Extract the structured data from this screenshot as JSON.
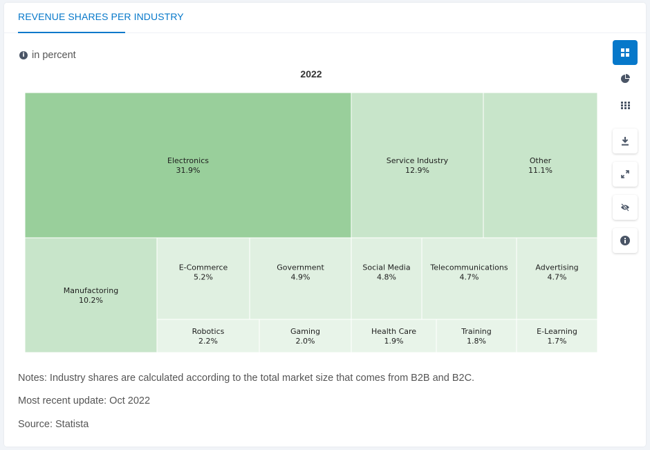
{
  "tab": {
    "label": "REVENUE SHARES PER INDUSTRY"
  },
  "unit": {
    "label": "in percent"
  },
  "chart_data": {
    "type": "treemap",
    "title": "2022",
    "unit": "percent",
    "items": [
      {
        "name": "Electronics",
        "value": 31.9,
        "label": "31.9%"
      },
      {
        "name": "Service Industry",
        "value": 12.9,
        "label": "12.9%"
      },
      {
        "name": "Other",
        "value": 11.1,
        "label": "11.1%"
      },
      {
        "name": "Manufactoring",
        "value": 10.2,
        "label": "10.2%"
      },
      {
        "name": "E-Commerce",
        "value": 5.2,
        "label": "5.2%"
      },
      {
        "name": "Government",
        "value": 4.9,
        "label": "4.9%"
      },
      {
        "name": "Social Media",
        "value": 4.8,
        "label": "4.8%"
      },
      {
        "name": "Telecommunications",
        "value": 4.7,
        "label": "4.7%"
      },
      {
        "name": "Advertising",
        "value": 4.7,
        "label": "4.7%"
      },
      {
        "name": "Robotics",
        "value": 2.2,
        "label": "2.2%"
      },
      {
        "name": "Gaming",
        "value": 2.0,
        "label": "2.0%"
      },
      {
        "name": "Health Care",
        "value": 1.9,
        "label": "1.9%"
      },
      {
        "name": "Training",
        "value": 1.8,
        "label": "1.8%"
      },
      {
        "name": "E-Learning",
        "value": 1.7,
        "label": "1.7%"
      }
    ],
    "colors": {
      "large": "#99cf9b",
      "medium": "#c8e5ca",
      "small": "#e0f0e1",
      "smallest": "#e8f4e9",
      "border": "#ffffff"
    }
  },
  "notes": {
    "note": "Notes: Industry shares are calculated according to the total market size that comes from B2B and B2C.",
    "update": "Most recent update: Oct 2022",
    "source": "Source: Statista"
  },
  "toolbar": {
    "accent": "#0678ca",
    "icon_color": "#4a5566",
    "items": [
      "treemap-view-icon",
      "pie-view-icon",
      "table-view-icon",
      "download-icon",
      "fullscreen-icon",
      "hide-icon",
      "info-icon"
    ]
  }
}
